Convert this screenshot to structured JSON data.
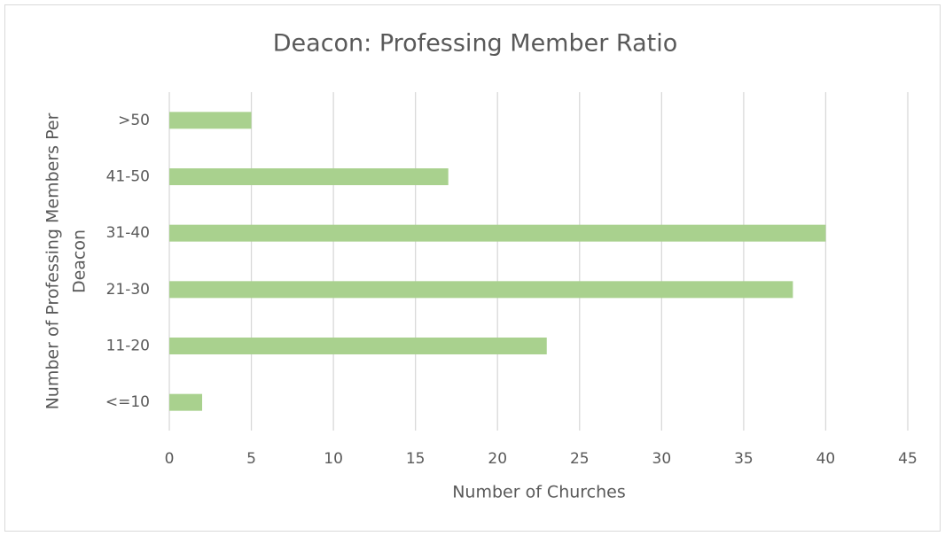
{
  "chart_data": {
    "type": "bar",
    "orientation": "horizontal",
    "title": "Deacon: Professing Member Ratio",
    "x_label": "Number of Churches",
    "y_label": [
      "Number of Professing Members Per",
      "Deacon"
    ],
    "categories": [
      ">50",
      "41-50",
      "31-40",
      "21-30",
      "11-20",
      "<=10"
    ],
    "values": [
      5,
      17,
      40,
      38,
      23,
      2
    ],
    "color": "#a9d18e",
    "xlim": [
      0,
      45
    ],
    "xticks": [
      0,
      5,
      10,
      15,
      20,
      25,
      30,
      35,
      40,
      45
    ],
    "grid": true
  }
}
